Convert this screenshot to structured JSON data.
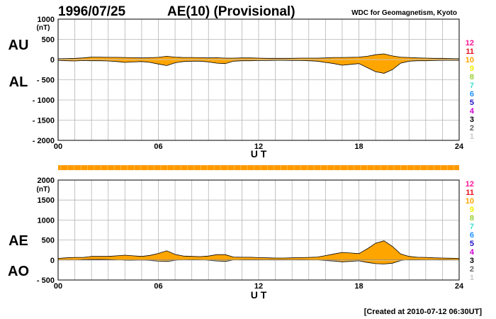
{
  "header": {
    "date": "1996/07/25",
    "title": "AE(10) (Provisional)",
    "source": "WDC for Geomagnetism, Kyoto"
  },
  "footer": {
    "created": "[Created at 2010-07-12 06:30UT]"
  },
  "colors": {
    "fill": "#ffa500",
    "grid": "#b4b4b4",
    "bar": "#ff9900",
    "stations_scale": [
      "#ff1493",
      "#e8101e",
      "#ffa500",
      "#f0f000",
      "#9acd32",
      "#40e0d0",
      "#1e90ff",
      "#1e10c8",
      "#d000d0",
      "#000000",
      "#646464",
      "#c8c8c8"
    ]
  },
  "station_scale": [
    "12",
    "11",
    "10",
    "9",
    "8",
    "7",
    "6",
    "5",
    "4",
    "3",
    "2",
    "1"
  ],
  "chart_data": [
    {
      "type": "area",
      "xlabel": "U T",
      "unit_label": "(nT)",
      "upper_label": "AU",
      "lower_label": "AL",
      "xticks": [
        "00",
        "06",
        "12",
        "18",
        "24"
      ],
      "yticks": [
        "1000",
        "500",
        "0",
        "- 500",
        "- 1000",
        "- 1500",
        "- 2000"
      ],
      "xlim": [
        0,
        24
      ],
      "ylim": [
        -2000,
        1000
      ],
      "grid": true,
      "series": [
        {
          "name": "AU",
          "x": [
            0,
            0.5,
            1,
            1.5,
            2,
            2.5,
            3,
            3.5,
            4,
            4.5,
            5,
            5.5,
            6,
            6.5,
            7,
            7.5,
            8,
            8.5,
            9,
            9.5,
            10,
            10.5,
            11,
            11.5,
            12,
            12.5,
            13,
            13.5,
            14,
            14.5,
            15,
            15.5,
            16,
            16.5,
            17,
            17.5,
            18,
            18.5,
            19,
            19.5,
            20,
            20.5,
            21,
            21.5,
            22,
            22.5,
            23,
            23.5,
            24
          ],
          "values": [
            20,
            25,
            30,
            40,
            60,
            60,
            55,
            55,
            50,
            45,
            40,
            45,
            55,
            80,
            60,
            50,
            50,
            45,
            40,
            45,
            35,
            35,
            40,
            40,
            35,
            30,
            30,
            30,
            30,
            35,
            35,
            35,
            40,
            50,
            50,
            55,
            60,
            80,
            120,
            140,
            90,
            60,
            50,
            40,
            35,
            30,
            30,
            25,
            20
          ]
        },
        {
          "name": "AL",
          "x": [
            0,
            0.5,
            1,
            1.5,
            2,
            2.5,
            3,
            3.5,
            4,
            4.5,
            5,
            5.5,
            6,
            6.5,
            7,
            7.5,
            8,
            8.5,
            9,
            9.5,
            10,
            10.5,
            11,
            11.5,
            12,
            12.5,
            13,
            13.5,
            14,
            14.5,
            15,
            15.5,
            16,
            16.5,
            17,
            17.5,
            18,
            18.5,
            19,
            19.5,
            20,
            20.5,
            21,
            21.5,
            22,
            22.5,
            23,
            23.5,
            24
          ],
          "values": [
            -20,
            -30,
            -35,
            -25,
            -30,
            -30,
            -35,
            -50,
            -70,
            -60,
            -50,
            -70,
            -110,
            -150,
            -80,
            -50,
            -40,
            -40,
            -60,
            -90,
            -100,
            -40,
            -30,
            -30,
            -25,
            -25,
            -20,
            -20,
            -25,
            -25,
            -30,
            -40,
            -70,
            -100,
            -140,
            -120,
            -100,
            -200,
            -300,
            -340,
            -250,
            -90,
            -40,
            -30,
            -30,
            -25,
            -20,
            -20,
            -20
          ]
        }
      ]
    },
    {
      "type": "area",
      "xlabel": "U T",
      "unit_label": "(nT)",
      "upper_label": "AE",
      "lower_label": "AO",
      "xticks": [
        "00",
        "06",
        "12",
        "18",
        "24"
      ],
      "yticks": [
        "2000",
        "1500",
        "1000",
        "500",
        "0",
        "- 500"
      ],
      "xlim": [
        0,
        24
      ],
      "ylim": [
        -500,
        2000
      ],
      "grid": true,
      "series": [
        {
          "name": "AE",
          "x": [
            0,
            0.5,
            1,
            1.5,
            2,
            2.5,
            3,
            3.5,
            4,
            4.5,
            5,
            5.5,
            6,
            6.5,
            7,
            7.5,
            8,
            8.5,
            9,
            9.5,
            10,
            10.5,
            11,
            11.5,
            12,
            12.5,
            13,
            13.5,
            14,
            14.5,
            15,
            15.5,
            16,
            16.5,
            17,
            17.5,
            18,
            18.5,
            19,
            19.5,
            20,
            20.5,
            21,
            21.5,
            22,
            22.5,
            23,
            23.5,
            24
          ],
          "values": [
            40,
            55,
            65,
            65,
            90,
            90,
            90,
            105,
            120,
            105,
            90,
            115,
            165,
            230,
            140,
            100,
            90,
            85,
            100,
            135,
            135,
            75,
            70,
            70,
            60,
            55,
            50,
            50,
            55,
            60,
            65,
            75,
            110,
            150,
            190,
            175,
            160,
            280,
            420,
            480,
            340,
            150,
            90,
            70,
            65,
            55,
            50,
            45,
            40
          ]
        },
        {
          "name": "AO",
          "x": [
            0,
            0.5,
            1,
            1.5,
            2,
            2.5,
            3,
            3.5,
            4,
            4.5,
            5,
            5.5,
            6,
            6.5,
            7,
            7.5,
            8,
            8.5,
            9,
            9.5,
            10,
            10.5,
            11,
            11.5,
            12,
            12.5,
            13,
            13.5,
            14,
            14.5,
            15,
            15.5,
            16,
            16.5,
            17,
            17.5,
            18,
            18.5,
            19,
            19.5,
            20,
            20.5,
            21,
            21.5,
            22,
            22.5,
            23,
            23.5,
            24
          ],
          "values": [
            0,
            -3,
            -3,
            8,
            15,
            15,
            10,
            3,
            -10,
            -8,
            -5,
            -13,
            -28,
            -35,
            -10,
            0,
            5,
            3,
            -10,
            -23,
            -33,
            -3,
            5,
            5,
            5,
            3,
            5,
            5,
            3,
            5,
            3,
            -3,
            -15,
            -25,
            -45,
            -33,
            -20,
            -60,
            -90,
            -100,
            -80,
            -15,
            5,
            5,
            3,
            3,
            5,
            3,
            0
          ]
        }
      ]
    }
  ]
}
